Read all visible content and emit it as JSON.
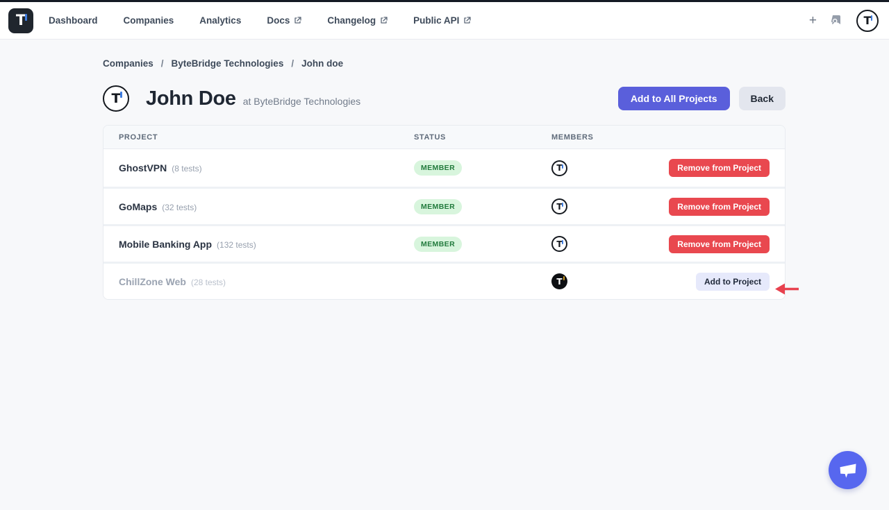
{
  "brand": {
    "glyph": "T"
  },
  "nav": {
    "items": [
      {
        "label": "Dashboard",
        "external": false
      },
      {
        "label": "Companies",
        "external": false
      },
      {
        "label": "Analytics",
        "external": false
      },
      {
        "label": "Docs",
        "external": true
      },
      {
        "label": "Changelog",
        "external": true
      },
      {
        "label": "Public API",
        "external": true
      }
    ],
    "plus_label": "+"
  },
  "breadcrumb": {
    "separator": "/",
    "items": [
      "Companies",
      "ByteBridge Technologies",
      "John doe"
    ]
  },
  "header": {
    "title": "John Doe",
    "subtitle": "at ByteBridge Technologies",
    "primary_button": "Add to All Projects",
    "secondary_button": "Back"
  },
  "table": {
    "columns": [
      "PROJECT",
      "STATUS",
      "MEMBERS"
    ],
    "rows": [
      {
        "project": "GhostVPN",
        "tests": "(8 tests)",
        "status": "MEMBER",
        "action": "Remove from Project",
        "action_type": "remove",
        "avatar_variant": "light",
        "disabled": false
      },
      {
        "project": "GoMaps",
        "tests": "(32 tests)",
        "status": "MEMBER",
        "action": "Remove from Project",
        "action_type": "remove",
        "avatar_variant": "light",
        "disabled": false
      },
      {
        "project": "Mobile Banking App",
        "tests": "(132 tests)",
        "status": "MEMBER",
        "action": "Remove from Project",
        "action_type": "remove",
        "avatar_variant": "light",
        "disabled": false
      },
      {
        "project": "ChillZone Web",
        "tests": "(28 tests)",
        "status": "",
        "action": "Add to Project",
        "action_type": "add",
        "avatar_variant": "dark",
        "disabled": true
      }
    ]
  },
  "colors": {
    "accent": "#5a5fdb",
    "danger": "#e9484f",
    "success_bg": "#d8f5dd",
    "success_text": "#217a3c",
    "annotation_arrow": "#e8414e",
    "fab": "#5767ef"
  }
}
